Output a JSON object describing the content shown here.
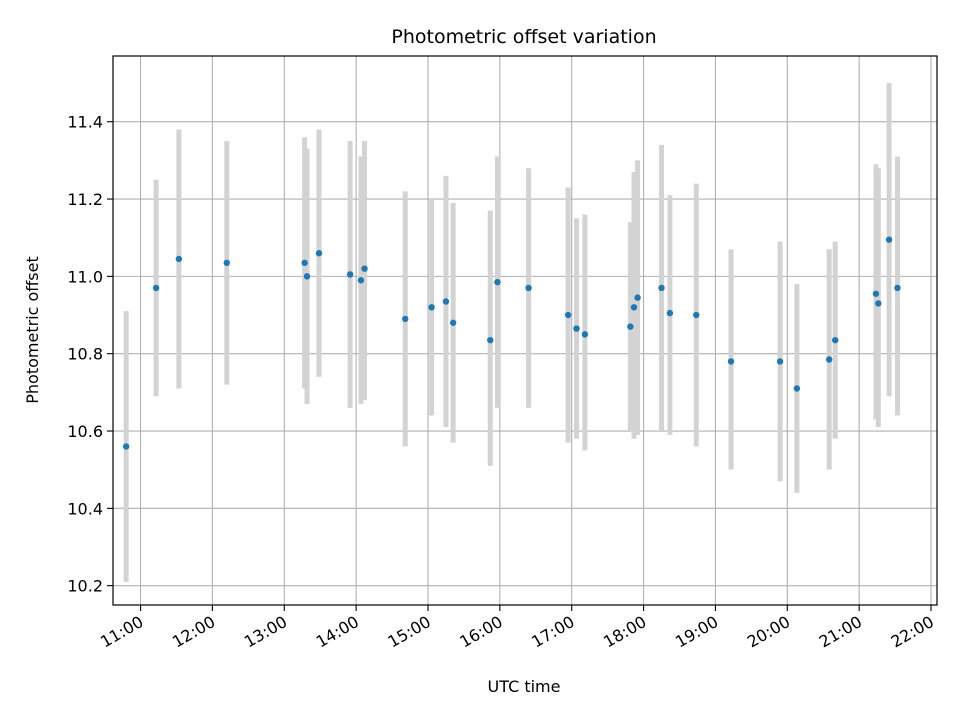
{
  "chart_data": {
    "type": "scatter",
    "title": "Photometric offset variation",
    "xlabel": "UTC time",
    "ylabel": "Photometric offset",
    "x_tick_labels": [
      "11:00",
      "12:00",
      "13:00",
      "14:00",
      "15:00",
      "16:00",
      "17:00",
      "18:00",
      "19:00",
      "20:00",
      "21:00",
      "22:00"
    ],
    "x_ticks_hours": [
      11,
      12,
      13,
      14,
      15,
      16,
      17,
      18,
      19,
      20,
      21,
      22
    ],
    "y_ticks": [
      10.2,
      10.4,
      10.6,
      10.8,
      11.0,
      11.2,
      11.4
    ],
    "y_tick_labels": [
      "10.2",
      "10.4",
      "10.6",
      "10.8",
      "11.0",
      "11.2",
      "11.4"
    ],
    "xlim": [
      "10:37",
      "22:05"
    ],
    "ylim": [
      10.15,
      11.57
    ],
    "grid": true,
    "marker_color": "#1f77b4",
    "errorbar_color": "#d3d3d3",
    "points": [
      {
        "x": "10:48",
        "y": 10.56,
        "lo": 10.21,
        "hi": 10.91
      },
      {
        "x": "11:13",
        "y": 10.97,
        "lo": 10.69,
        "hi": 11.25
      },
      {
        "x": "11:32",
        "y": 11.045,
        "lo": 10.71,
        "hi": 11.38
      },
      {
        "x": "12:12",
        "y": 11.035,
        "lo": 10.72,
        "hi": 11.35
      },
      {
        "x": "13:17",
        "y": 11.035,
        "lo": 10.71,
        "hi": 11.36
      },
      {
        "x": "13:19",
        "y": 11.0,
        "lo": 10.67,
        "hi": 11.33
      },
      {
        "x": "13:29",
        "y": 11.06,
        "lo": 10.74,
        "hi": 11.38
      },
      {
        "x": "13:55",
        "y": 11.005,
        "lo": 10.66,
        "hi": 11.35
      },
      {
        "x": "14:04",
        "y": 10.99,
        "lo": 10.67,
        "hi": 11.31
      },
      {
        "x": "14:07",
        "y": 11.02,
        "lo": 10.68,
        "hi": 11.35
      },
      {
        "x": "14:41",
        "y": 10.89,
        "lo": 10.56,
        "hi": 11.22
      },
      {
        "x": "15:03",
        "y": 10.92,
        "lo": 10.64,
        "hi": 11.2
      },
      {
        "x": "15:15",
        "y": 10.935,
        "lo": 10.61,
        "hi": 11.26
      },
      {
        "x": "15:21",
        "y": 10.88,
        "lo": 10.57,
        "hi": 11.19
      },
      {
        "x": "15:52",
        "y": 10.835,
        "lo": 10.51,
        "hi": 11.17
      },
      {
        "x": "15:58",
        "y": 10.985,
        "lo": 10.66,
        "hi": 11.31
      },
      {
        "x": "16:24",
        "y": 10.97,
        "lo": 10.66,
        "hi": 11.28
      },
      {
        "x": "16:57",
        "y": 10.9,
        "lo": 10.57,
        "hi": 11.23
      },
      {
        "x": "17:04",
        "y": 10.865,
        "lo": 10.58,
        "hi": 11.15
      },
      {
        "x": "17:11",
        "y": 10.85,
        "lo": 10.55,
        "hi": 11.16
      },
      {
        "x": "17:49",
        "y": 10.87,
        "lo": 10.6,
        "hi": 11.14
      },
      {
        "x": "17:52",
        "y": 10.92,
        "lo": 10.58,
        "hi": 11.27
      },
      {
        "x": "17:55",
        "y": 10.945,
        "lo": 10.59,
        "hi": 11.3
      },
      {
        "x": "18:15",
        "y": 10.97,
        "lo": 10.6,
        "hi": 11.34
      },
      {
        "x": "18:22",
        "y": 10.905,
        "lo": 10.59,
        "hi": 11.21
      },
      {
        "x": "18:44",
        "y": 10.9,
        "lo": 10.56,
        "hi": 11.24
      },
      {
        "x": "19:13",
        "y": 10.78,
        "lo": 10.5,
        "hi": 11.07
      },
      {
        "x": "19:54",
        "y": 10.78,
        "lo": 10.47,
        "hi": 11.09
      },
      {
        "x": "20:08",
        "y": 10.71,
        "lo": 10.44,
        "hi": 10.98
      },
      {
        "x": "20:35",
        "y": 10.785,
        "lo": 10.5,
        "hi": 11.07
      },
      {
        "x": "20:40",
        "y": 10.835,
        "lo": 10.58,
        "hi": 11.09
      },
      {
        "x": "21:14",
        "y": 10.955,
        "lo": 10.63,
        "hi": 11.29
      },
      {
        "x": "21:16",
        "y": 10.93,
        "lo": 10.61,
        "hi": 11.28
      },
      {
        "x": "21:25",
        "y": 11.095,
        "lo": 10.69,
        "hi": 11.5
      },
      {
        "x": "21:32",
        "y": 10.97,
        "lo": 10.64,
        "hi": 11.31
      }
    ]
  }
}
